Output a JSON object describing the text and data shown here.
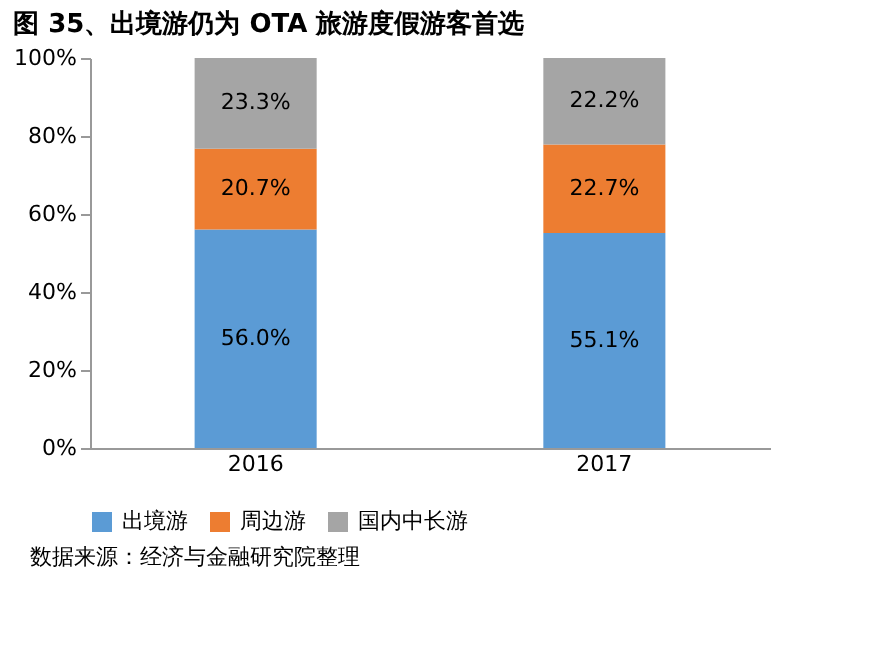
{
  "chart_data": {
    "type": "bar",
    "title": "图 35、出境游仍为 OTA 旅游度假游客首选",
    "categories": [
      "2016",
      "2017"
    ],
    "stacked": true,
    "series": [
      {
        "name": "出境游",
        "color": "#5b9bd5",
        "values": [
          56.0,
          55.1
        ],
        "value_labels": [
          "56.0%",
          "55.1%"
        ]
      },
      {
        "name": "周边游",
        "color": "#ed7d31",
        "values": [
          20.7,
          22.7
        ],
        "value_labels": [
          "20.7%",
          "22.7%"
        ]
      },
      {
        "name": "国内中长游",
        "color": "#a5a5a5",
        "values": [
          23.3,
          22.2
        ],
        "value_labels": [
          "23.3%",
          "22.2%"
        ]
      }
    ],
    "ylim": [
      0,
      100
    ],
    "yticks": [
      {
        "value": 0,
        "label": "0%"
      },
      {
        "value": 20,
        "label": "20%"
      },
      {
        "value": 40,
        "label": "40%"
      },
      {
        "value": 60,
        "label": "60%"
      },
      {
        "value": 80,
        "label": "80%"
      },
      {
        "value": 100,
        "label": "100%"
      }
    ],
    "grid": false,
    "legend": "bottom",
    "annotations": [
      "数据来源：经济与金融研究院整理"
    ]
  }
}
